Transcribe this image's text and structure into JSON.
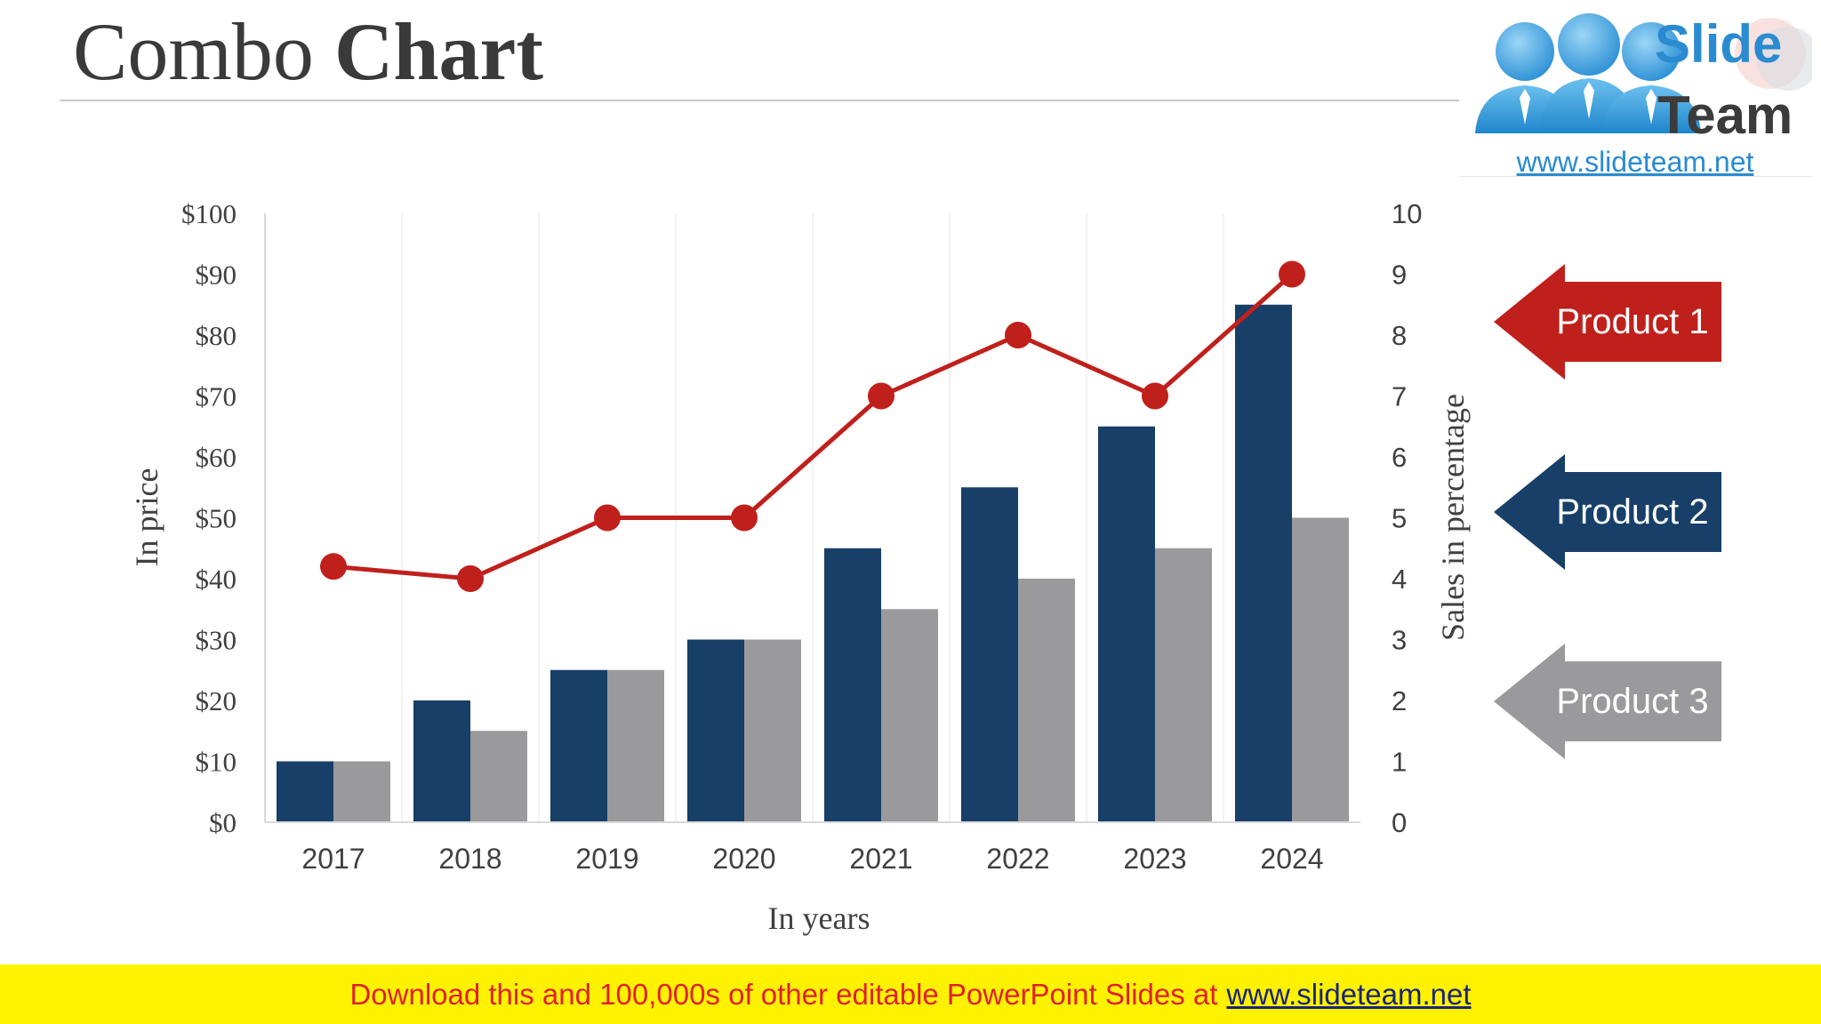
{
  "slide": {
    "title_light": "Combo ",
    "title_bold": "Chart"
  },
  "logo": {
    "word1": "Slide",
    "word2": "Team",
    "url": "www.slideteam.net"
  },
  "legend": [
    {
      "label": "Product 1",
      "color": "#c0201c"
    },
    {
      "label": "Product 2",
      "color": "#173f68"
    },
    {
      "label": "Product 3",
      "color": "#9a999b"
    }
  ],
  "banner": {
    "text": "Download this and 100,000s of other editable PowerPoint Slides at",
    "link": "www.slideteam.net"
  },
  "chart_data": {
    "type": "combo",
    "categories": [
      "2017",
      "2018",
      "2019",
      "2020",
      "2021",
      "2022",
      "2023",
      "2024"
    ],
    "series": [
      {
        "name": "Product 2",
        "type": "bar",
        "axis": "left",
        "color": "#173f68",
        "values": [
          10,
          20,
          25,
          30,
          45,
          55,
          65,
          85
        ]
      },
      {
        "name": "Product 3",
        "type": "bar",
        "axis": "left",
        "color": "#9a999b",
        "values": [
          10,
          15,
          25,
          30,
          35,
          40,
          45,
          50
        ]
      },
      {
        "name": "Product 1",
        "type": "line",
        "axis": "right",
        "color": "#c0201c",
        "values": [
          4.2,
          4,
          5,
          5,
          7,
          8,
          7,
          9
        ]
      }
    ],
    "xlabel": "In years",
    "ylabel_left": "In price",
    "ylabel_right": "Sales in percentage",
    "ylim_left": [
      0,
      100
    ],
    "ylim_right": [
      0,
      10
    ],
    "left_ticks": [
      "$0",
      "$10",
      "$20",
      "$30",
      "$40",
      "$50",
      "$60",
      "$70",
      "$80",
      "$90",
      "$100"
    ],
    "right_ticks": [
      "0",
      "1",
      "2",
      "3",
      "4",
      "5",
      "6",
      "7",
      "8",
      "9",
      "10"
    ]
  }
}
